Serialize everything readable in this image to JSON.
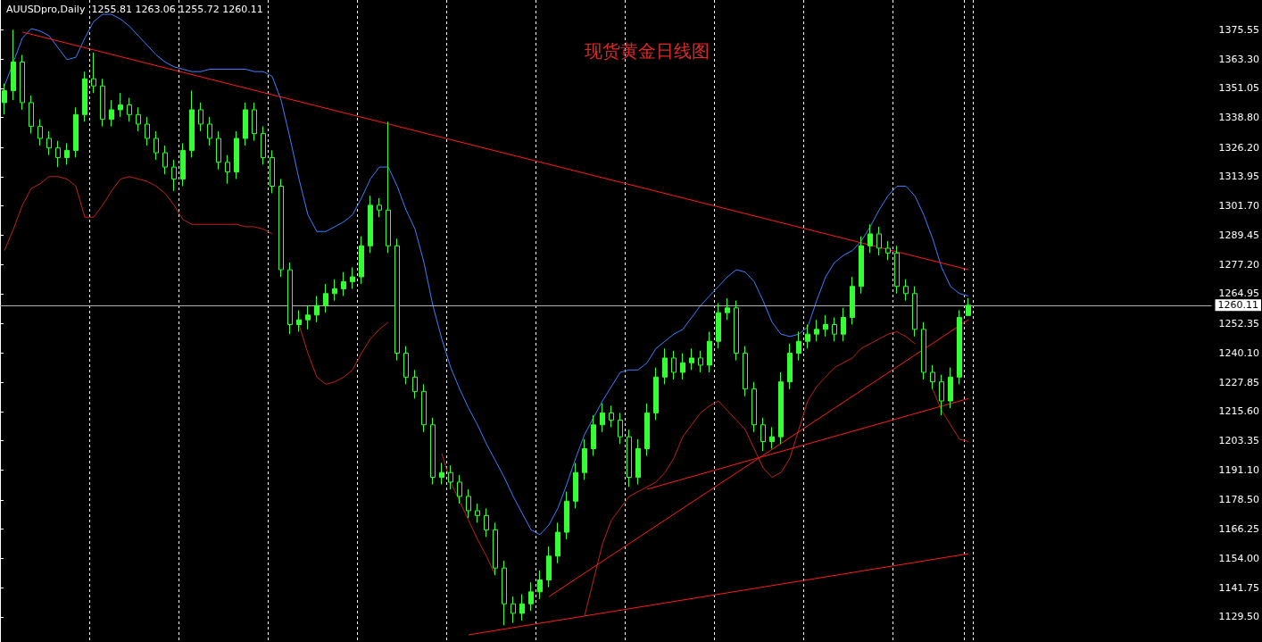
{
  "chart_data": {
    "type": "candlestick",
    "title": "现货黄金日线图",
    "subtitle": "AUUSDpro,Daily  1255.81 1263.06 1255.72 1260.11",
    "categories": [
      null,
      null,
      null,
      null,
      null,
      null,
      null,
      null,
      null,
      null,
      null,
      null,
      null,
      null,
      null,
      null,
      null,
      null,
      null,
      null,
      null,
      null,
      null,
      null,
      null,
      null,
      null,
      null,
      null,
      null,
      null,
      null,
      null,
      null,
      null,
      null,
      null,
      null,
      null,
      null,
      null,
      null,
      null,
      null,
      null,
      null,
      null,
      null,
      null,
      null,
      null,
      null,
      null,
      null,
      null,
      null,
      null,
      null,
      null,
      null,
      null,
      null,
      null,
      null,
      null,
      null,
      null,
      null,
      null,
      null,
      null,
      null,
      null,
      null,
      null,
      null,
      null,
      null,
      null,
      null,
      null,
      null,
      null,
      null,
      null,
      null,
      null,
      null,
      null,
      null,
      null,
      null,
      null,
      null,
      null,
      null,
      null,
      null,
      null,
      null,
      null,
      null,
      null,
      null,
      null,
      null,
      null,
      null,
      null
    ],
    "series": [
      {
        "type": "candlestick",
        "color": "#33ff33",
        "ohlc": [
          [
            1345,
            1353,
            1340,
            1350
          ],
          [
            1350,
            1375.55,
            1346,
            1362
          ],
          [
            1362,
            1365,
            1342,
            1345
          ],
          [
            1345,
            1348,
            1332,
            1335
          ],
          [
            1335,
            1338,
            1327,
            1330
          ],
          [
            1330,
            1333,
            1323,
            1326
          ],
          [
            1326,
            1329,
            1318,
            1322
          ],
          [
            1322,
            1328,
            1319,
            1325
          ],
          [
            1325,
            1343,
            1322,
            1340
          ],
          [
            1340,
            1358,
            1337,
            1355
          ],
          [
            1355,
            1366,
            1349,
            1352
          ],
          [
            1352,
            1355,
            1335,
            1338
          ],
          [
            1338,
            1346,
            1335,
            1342
          ],
          [
            1342,
            1349,
            1339,
            1344
          ],
          [
            1344,
            1347,
            1337,
            1340
          ],
          [
            1340,
            1343,
            1333,
            1336
          ],
          [
            1336,
            1339,
            1327,
            1330
          ],
          [
            1330,
            1333,
            1321,
            1324
          ],
          [
            1324,
            1327,
            1315,
            1318
          ],
          [
            1318,
            1321,
            1308,
            1313
          ],
          [
            1313,
            1328,
            1310,
            1325
          ],
          [
            1325,
            1350,
            1322,
            1342
          ],
          [
            1342,
            1345,
            1333,
            1336
          ],
          [
            1336,
            1339,
            1327,
            1330
          ],
          [
            1330,
            1333,
            1317,
            1320
          ],
          [
            1320,
            1323,
            1311,
            1316
          ],
          [
            1316,
            1333,
            1313,
            1330
          ],
          [
            1330,
            1345,
            1327,
            1342
          ],
          [
            1342,
            1345,
            1329,
            1332
          ],
          [
            1332,
            1335,
            1319,
            1322
          ],
          [
            1322,
            1325,
            1307,
            1310
          ],
          [
            1310,
            1313,
            1272,
            1275
          ],
          [
            1275,
            1278,
            1248,
            1252
          ],
          [
            1252,
            1258,
            1249,
            1254
          ],
          [
            1254,
            1260,
            1250,
            1256
          ],
          [
            1256,
            1264,
            1253,
            1260
          ],
          [
            1260,
            1269,
            1257,
            1265
          ],
          [
            1265,
            1271,
            1262,
            1267
          ],
          [
            1267,
            1274,
            1264,
            1270
          ],
          [
            1270,
            1276,
            1267,
            1272
          ],
          [
            1272,
            1289,
            1269,
            1285
          ],
          [
            1285,
            1306,
            1282,
            1302
          ],
          [
            1302,
            1305,
            1297,
            1300
          ],
          [
            1300,
            1337,
            1282,
            1285
          ],
          [
            1285,
            1288,
            1237,
            1240
          ],
          [
            1240,
            1243,
            1227,
            1230
          ],
          [
            1230,
            1233,
            1221,
            1224
          ],
          [
            1224,
            1227,
            1207,
            1210
          ],
          [
            1210,
            1213,
            1185,
            1188
          ],
          [
            1188,
            1194,
            1185,
            1190
          ],
          [
            1190,
            1193,
            1183,
            1186
          ],
          [
            1186,
            1189,
            1177,
            1180
          ],
          [
            1180,
            1183,
            1171,
            1174
          ],
          [
            1174,
            1177,
            1169,
            1172
          ],
          [
            1172,
            1175,
            1163,
            1166
          ],
          [
            1166,
            1169,
            1147,
            1150
          ],
          [
            1150,
            1153,
            1126,
            1135
          ],
          [
            1135,
            1138,
            1127,
            1131
          ],
          [
            1131,
            1139,
            1128,
            1135
          ],
          [
            1135,
            1144,
            1132,
            1140
          ],
          [
            1140,
            1149,
            1137,
            1145
          ],
          [
            1145,
            1159,
            1142,
            1155
          ],
          [
            1155,
            1169,
            1152,
            1165
          ],
          [
            1165,
            1182,
            1162,
            1178
          ],
          [
            1178,
            1194,
            1175,
            1190
          ],
          [
            1190,
            1204,
            1187,
            1200
          ],
          [
            1200,
            1214,
            1197,
            1210
          ],
          [
            1210,
            1219,
            1207,
            1215
          ],
          [
            1215,
            1218,
            1209,
            1212
          ],
          [
            1212,
            1215,
            1202,
            1205
          ],
          [
            1205,
            1208,
            1184,
            1188
          ],
          [
            1188,
            1204,
            1185,
            1200
          ],
          [
            1200,
            1219,
            1197,
            1215
          ],
          [
            1215,
            1234,
            1212,
            1230
          ],
          [
            1230,
            1242,
            1227,
            1238
          ],
          [
            1238,
            1241,
            1229,
            1232
          ],
          [
            1232,
            1240,
            1229,
            1236
          ],
          [
            1236,
            1242,
            1233,
            1238
          ],
          [
            1238,
            1241,
            1232,
            1235
          ],
          [
            1235,
            1249,
            1232,
            1245
          ],
          [
            1245,
            1261,
            1242,
            1257
          ],
          [
            1257,
            1263,
            1254,
            1259
          ],
          [
            1259,
            1262,
            1237,
            1240
          ],
          [
            1240,
            1243,
            1222,
            1225
          ],
          [
            1225,
            1228,
            1207,
            1210
          ],
          [
            1210,
            1213,
            1199,
            1203
          ],
          [
            1203,
            1209,
            1200,
            1205
          ],
          [
            1205,
            1232,
            1202,
            1228
          ],
          [
            1228,
            1244,
            1225,
            1240
          ],
          [
            1240,
            1249,
            1237,
            1245
          ],
          [
            1245,
            1252,
            1242,
            1248
          ],
          [
            1248,
            1254,
            1245,
            1250
          ],
          [
            1250,
            1256,
            1247,
            1252
          ],
          [
            1252,
            1255,
            1245,
            1248
          ],
          [
            1248,
            1259,
            1245,
            1255
          ],
          [
            1255,
            1272,
            1252,
            1268
          ],
          [
            1268,
            1289,
            1265,
            1285
          ],
          [
            1285,
            1294,
            1282,
            1290
          ],
          [
            1290,
            1293,
            1281,
            1284
          ],
          [
            1284,
            1287,
            1279,
            1282
          ],
          [
            1282,
            1285,
            1265,
            1268
          ],
          [
            1268,
            1271,
            1262,
            1265
          ],
          [
            1265,
            1268,
            1247,
            1250
          ],
          [
            1250,
            1253,
            1229,
            1232
          ],
          [
            1232,
            1235,
            1225,
            1228
          ],
          [
            1228,
            1231,
            1214,
            1220
          ],
          [
            1220,
            1234,
            1217,
            1230
          ],
          [
            1230,
            1258,
            1227,
            1255
          ],
          [
            1255.81,
            1263.06,
            1255.72,
            1260.11
          ]
        ]
      },
      {
        "type": "line",
        "color": "#3d7fff",
        "values": [
          1352,
          1362,
          1372,
          1376,
          1375,
          1373,
          1368,
          1363,
          1364,
          1372,
          1379,
          1382,
          1382,
          1380,
          1377,
          1373,
          1369,
          1365,
          1362,
          1360,
          1359,
          1358,
          1358,
          1359,
          1359,
          1359,
          1359,
          1359,
          1358,
          1358,
          1356,
          1346,
          1330,
          1313,
          1298,
          1291,
          1291,
          1293,
          1295,
          1298,
          1305,
          1313,
          1318,
          1318,
          1310,
          1300,
          1292,
          1278,
          1260,
          1246,
          1234,
          1225,
          1217,
          1210,
          1202,
          1195,
          1188,
          1180,
          1173,
          1166,
          1164,
          1168,
          1175,
          1185,
          1196,
          1206,
          1213,
          1220,
          1226,
          1232,
          1233,
          1233,
          1236,
          1242,
          1245,
          1248,
          1250,
          1255,
          1260,
          1264,
          1268,
          1272,
          1275,
          1274,
          1270,
          1262,
          1253,
          1248,
          1247,
          1248,
          1251,
          1262,
          1272,
          1278,
          1281,
          1283,
          1287,
          1293,
          1300,
          1306,
          1310,
          1310,
          1306,
          1298,
          1288,
          1276,
          1268,
          1265,
          1264
        ]
      },
      {
        "type": "line",
        "color": "#c02020",
        "values": [
          1283,
          1292,
          1302,
          1309,
          1311,
          1314,
          1314,
          1313,
          1310,
          1297,
          1297,
          1302,
          1308,
          1313,
          1314,
          1313,
          1312,
          1310,
          1307,
          1302,
          1296,
          1294,
          1294,
          1294,
          1294,
          1294,
          1294,
          1293,
          1293,
          1292,
          1290,
          null,
          null,
          1252,
          1240,
          1230,
          1227,
          1228,
          1230,
          1233,
          1240,
          1246,
          1250,
          1253,
          null,
          null,
          null,
          null,
          null,
          1198,
          1186,
          1178,
          1170,
          1162,
          1155,
          1147,
          null,
          null,
          null,
          null,
          null,
          null,
          null,
          null,
          null,
          1130,
          1145,
          1160,
          1170,
          1175,
          1180,
          1182,
          1184,
          1186,
          1190,
          1196,
          1205,
          1210,
          1215,
          1218,
          1220,
          1216,
          1212,
          1208,
          1200,
          1192,
          1188,
          1190,
          1196,
          1208,
          1220,
          1226,
          1230,
          1234,
          1236,
          1238,
          1242,
          1244,
          1246,
          1248,
          1249,
          1247,
          1244,
          null,
          1225,
          1216,
          1210,
          1204,
          1203
        ]
      },
      {
        "type": "line",
        "color": "#ff1a1a",
        "values": [
          null,
          null,
          1374.6,
          null,
          null,
          null,
          null,
          null,
          null,
          null,
          null,
          null,
          null,
          null,
          null,
          null,
          null,
          null,
          null,
          null,
          null,
          null,
          null,
          null,
          null,
          null,
          null,
          null,
          null,
          null,
          null,
          null,
          null,
          null,
          null,
          null,
          null,
          null,
          null,
          null,
          null,
          null,
          null,
          null,
          null,
          null,
          null,
          null,
          null,
          null,
          null,
          null,
          null,
          null,
          null,
          null,
          null,
          null,
          null,
          null,
          null,
          null,
          null,
          null,
          null,
          null,
          null,
          null,
          null,
          null,
          null,
          null,
          null,
          null,
          null,
          null,
          null,
          null,
          null,
          null,
          null,
          null,
          null,
          null,
          null,
          null,
          null,
          null,
          null,
          null,
          null,
          null,
          null,
          null,
          null,
          null,
          null,
          null,
          null,
          null,
          null,
          null,
          null,
          null,
          null,
          null,
          null,
          null,
          1275
        ]
      },
      {
        "type": "line",
        "color": "#ff1a1a",
        "values": [
          null,
          null,
          null,
          null,
          null,
          null,
          null,
          null,
          null,
          null,
          null,
          null,
          null,
          null,
          null,
          null,
          null,
          null,
          null,
          null,
          null,
          null,
          null,
          null,
          null,
          null,
          null,
          null,
          null,
          null,
          null,
          null,
          null,
          null,
          null,
          null,
          null,
          null,
          null,
          null,
          null,
          null,
          null,
          null,
          null,
          null,
          null,
          null,
          null,
          null,
          null,
          null,
          null,
          null,
          null,
          null,
          null,
          null,
          null,
          null,
          null,
          1138,
          null,
          null,
          null,
          null,
          null,
          null,
          null,
          null,
          null,
          null,
          null,
          null,
          null,
          null,
          null,
          null,
          null,
          null,
          null,
          null,
          null,
          null,
          null,
          null,
          null,
          null,
          null,
          null,
          null,
          null,
          null,
          null,
          null,
          null,
          null,
          null,
          null,
          null,
          null,
          null,
          null,
          null,
          null,
          null,
          null,
          null,
          1254
        ]
      },
      {
        "type": "line",
        "color": "#ff1a1a",
        "values": [
          null,
          null,
          null,
          null,
          null,
          null,
          null,
          null,
          null,
          null,
          null,
          null,
          null,
          null,
          null,
          null,
          null,
          null,
          null,
          null,
          null,
          null,
          null,
          null,
          null,
          null,
          null,
          null,
          null,
          null,
          null,
          null,
          null,
          null,
          null,
          null,
          null,
          null,
          null,
          null,
          null,
          null,
          null,
          null,
          null,
          null,
          null,
          null,
          null,
          null,
          null,
          null,
          null,
          null,
          null,
          null,
          null,
          null,
          null,
          null,
          null,
          null,
          null,
          null,
          null,
          null,
          null,
          null,
          null,
          null,
          null,
          null,
          1183,
          null,
          null,
          null,
          null,
          null,
          null,
          null,
          null,
          null,
          null,
          null,
          null,
          null,
          null,
          null,
          null,
          null,
          null,
          null,
          null,
          null,
          null,
          null,
          null,
          null,
          null,
          null,
          null,
          null,
          null,
          null,
          null,
          null,
          null,
          null,
          1221
        ]
      },
      {
        "type": "line",
        "color": "#ff1a1a",
        "values": [
          null,
          null,
          null,
          null,
          null,
          null,
          null,
          null,
          null,
          null,
          null,
          null,
          null,
          null,
          null,
          null,
          null,
          null,
          null,
          null,
          null,
          null,
          null,
          null,
          null,
          null,
          null,
          null,
          null,
          null,
          null,
          null,
          null,
          null,
          null,
          null,
          null,
          null,
          null,
          null,
          null,
          null,
          null,
          null,
          null,
          null,
          null,
          null,
          null,
          null,
          null,
          null,
          1122,
          null,
          null,
          null,
          null,
          null,
          null,
          null,
          null,
          null,
          null,
          null,
          null,
          null,
          null,
          null,
          null,
          null,
          null,
          null,
          null,
          null,
          null,
          null,
          null,
          null,
          null,
          null,
          null,
          null,
          null,
          null,
          null,
          null,
          null,
          null,
          null,
          null,
          null,
          null,
          null,
          null,
          null,
          null,
          null,
          null,
          null,
          null,
          null,
          null,
          null,
          null,
          null,
          null,
          null,
          null,
          1156
        ]
      }
    ],
    "ylim": [
      1119,
      1388
    ],
    "yticks": [
      {
        "value": 1129.5,
        "label": "1129.50"
      },
      {
        "value": 1141.75,
        "label": "1141.75"
      },
      {
        "value": 1154,
        "label": "1154.00"
      },
      {
        "value": 1166.25,
        "label": "1166.25"
      },
      {
        "value": 1178.5,
        "label": "1178.50"
      },
      {
        "value": 1191.1,
        "label": "1191.10"
      },
      {
        "value": 1203.35,
        "label": "1203.35"
      },
      {
        "value": 1215.6,
        "label": "1215.60"
      },
      {
        "value": 1227.85,
        "label": "1227.85"
      },
      {
        "value": 1240.1,
        "label": "1240.10"
      },
      {
        "value": 1252.35,
        "label": "1252.35"
      },
      {
        "value": 1264.95,
        "label": "1264.95"
      },
      {
        "value": 1277.2,
        "label": "1277.20"
      },
      {
        "value": 1289.45,
        "label": "1289.45"
      },
      {
        "value": 1301.7,
        "label": "1301.70"
      },
      {
        "value": 1313.95,
        "label": "1313.95"
      },
      {
        "value": 1326.2,
        "label": "1326.20"
      },
      {
        "value": 1338.8,
        "label": "1338.80"
      },
      {
        "value": 1351.05,
        "label": "1351.05"
      },
      {
        "value": 1363.3,
        "label": "1363.30"
      },
      {
        "value": 1375.55,
        "label": "1375.55"
      }
    ],
    "tick_labels": "y",
    "grid": "x",
    "ref_lines": [
      {
        "axis": "y",
        "value": 1260.11,
        "label": "1260.11",
        "color": "#b0b0b0"
      }
    ]
  }
}
